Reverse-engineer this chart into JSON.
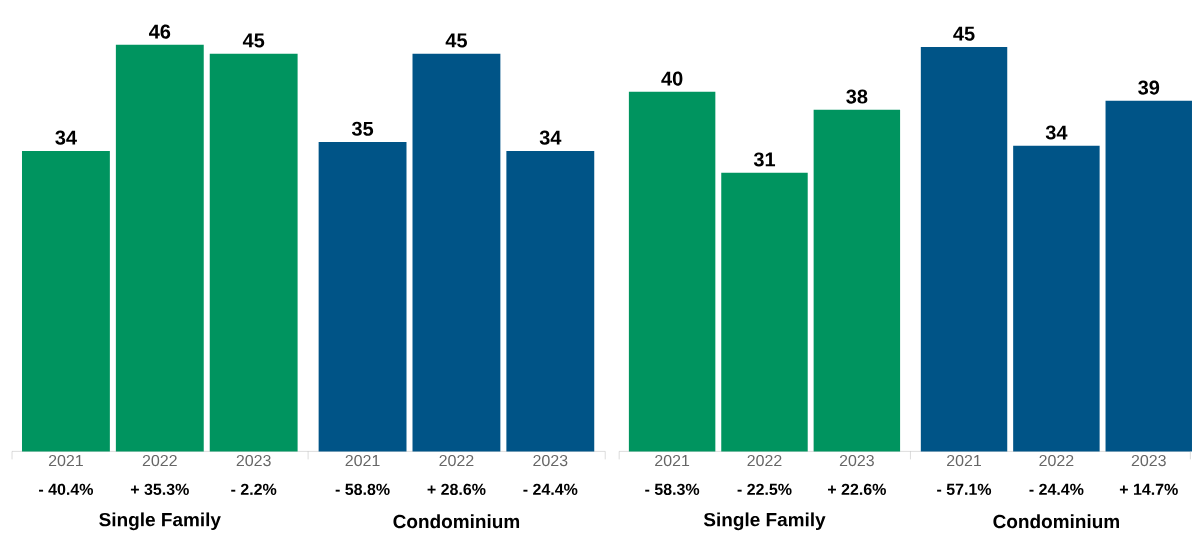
{
  "chart_data": [
    {
      "type": "bar",
      "categories": [
        "2021",
        "2022",
        "2023",
        "2021",
        "2022",
        "2023"
      ],
      "series": [
        {
          "color": "#00945f",
          "values": [
            34,
            46,
            45,
            null,
            null,
            null
          ]
        },
        {
          "color": "#005487",
          "values": [
            null,
            null,
            null,
            35,
            45,
            34
          ]
        }
      ],
      "annotations": [
        "- 40.4%",
        "+ 35.3%",
        "- 2.2%",
        "- 58.8%",
        "+ 28.6%",
        "- 24.4%",
        "Single Family",
        "Condominium"
      ],
      "data_labels": true,
      "tick_labels": "x"
    },
    {
      "type": "bar",
      "categories": [
        "2021",
        "2022",
        "2023",
        "2021",
        "2022",
        "2023"
      ],
      "series": [
        {
          "color": "#00945f",
          "values": [
            40,
            31,
            38,
            null,
            null,
            null
          ]
        },
        {
          "color": "#005487",
          "values": [
            null,
            null,
            null,
            45,
            34,
            39
          ]
        }
      ],
      "annotations": [
        "- 58.3%",
        "- 22.5%",
        "+ 22.6%",
        "- 57.1%",
        "- 24.4%",
        "+ 14.7%",
        "Single Family",
        "Condominium"
      ],
      "data_labels": true,
      "tick_labels": "x"
    }
  ]
}
